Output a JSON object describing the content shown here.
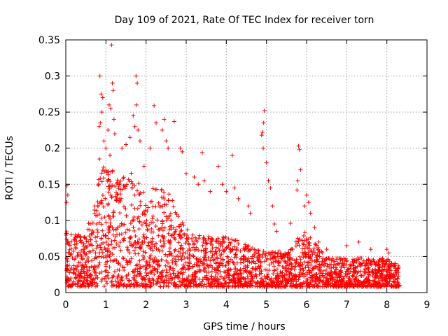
{
  "chart_data": {
    "type": "scatter",
    "title": "Day 109 of 2021, Rate Of TEC Index for receiver torn",
    "xlabel": "GPS time / hours",
    "ylabel": "ROTI / TECUs",
    "xlim": [
      0,
      9
    ],
    "ylim": [
      0,
      0.35
    ],
    "x_ticks": [
      0,
      1,
      2,
      3,
      4,
      5,
      6,
      7,
      8,
      9
    ],
    "y_ticks": [
      0,
      0.05,
      0.1,
      0.15,
      0.2,
      0.25,
      0.3,
      0.35
    ],
    "x_tick_labels": [
      "0",
      "1",
      "2",
      "3",
      "4",
      "5",
      "6",
      "7",
      "8",
      "9"
    ],
    "y_tick_labels": [
      "0",
      "0.05",
      "0.1",
      "0.15",
      "0.2",
      "0.25",
      "0.3",
      "0.35"
    ],
    "grid": true,
    "marker": "+",
    "color": "#ff0000",
    "series": [
      {
        "name": "ROTI",
        "envelope_x": [
          0,
          0.5,
          0.8,
          1.0,
          1.3,
          1.7,
          2.0,
          2.5,
          3.0,
          3.5,
          4.0,
          4.5,
          5.0,
          5.5,
          5.8,
          6.0,
          6.5,
          7.0,
          7.5,
          8.0,
          8.3
        ],
        "envelope_y": [
          0.08,
          0.07,
          0.15,
          0.18,
          0.15,
          0.16,
          0.14,
          0.14,
          0.08,
          0.07,
          0.07,
          0.06,
          0.05,
          0.05,
          0.07,
          0.08,
          0.04,
          0.04,
          0.04,
          0.04,
          0.03
        ],
        "points": [
          {
            "x": 0.03,
            "y": 0.148
          },
          {
            "x": 0.05,
            "y": 0.135
          },
          {
            "x": 0.02,
            "y": 0.125
          },
          {
            "x": 0.85,
            "y": 0.3
          },
          {
            "x": 0.88,
            "y": 0.275
          },
          {
            "x": 0.92,
            "y": 0.27
          },
          {
            "x": 0.9,
            "y": 0.25
          },
          {
            "x": 0.86,
            "y": 0.235
          },
          {
            "x": 0.83,
            "y": 0.23
          },
          {
            "x": 0.84,
            "y": 0.185
          },
          {
            "x": 0.95,
            "y": 0.21
          },
          {
            "x": 1.0,
            "y": 0.2
          },
          {
            "x": 1.05,
            "y": 0.225
          },
          {
            "x": 1.08,
            "y": 0.26
          },
          {
            "x": 1.12,
            "y": 0.255
          },
          {
            "x": 1.14,
            "y": 0.343
          },
          {
            "x": 1.16,
            "y": 0.29
          },
          {
            "x": 1.18,
            "y": 0.28
          },
          {
            "x": 1.2,
            "y": 0.24
          },
          {
            "x": 1.22,
            "y": 0.22
          },
          {
            "x": 1.1,
            "y": 0.19
          },
          {
            "x": 1.4,
            "y": 0.2
          },
          {
            "x": 1.5,
            "y": 0.205
          },
          {
            "x": 1.6,
            "y": 0.215
          },
          {
            "x": 1.68,
            "y": 0.245
          },
          {
            "x": 1.72,
            "y": 0.23
          },
          {
            "x": 1.75,
            "y": 0.3
          },
          {
            "x": 1.78,
            "y": 0.29
          },
          {
            "x": 1.76,
            "y": 0.26
          },
          {
            "x": 1.8,
            "y": 0.225
          },
          {
            "x": 1.85,
            "y": 0.21
          },
          {
            "x": 1.95,
            "y": 0.175
          },
          {
            "x": 2.1,
            "y": 0.2
          },
          {
            "x": 2.2,
            "y": 0.259
          },
          {
            "x": 2.25,
            "y": 0.235
          },
          {
            "x": 2.4,
            "y": 0.225
          },
          {
            "x": 2.45,
            "y": 0.24
          },
          {
            "x": 2.5,
            "y": 0.21
          },
          {
            "x": 2.55,
            "y": 0.2
          },
          {
            "x": 2.7,
            "y": 0.237
          },
          {
            "x": 2.85,
            "y": 0.2
          },
          {
            "x": 2.9,
            "y": 0.195
          },
          {
            "x": 3.0,
            "y": 0.165
          },
          {
            "x": 3.2,
            "y": 0.16
          },
          {
            "x": 3.3,
            "y": 0.15
          },
          {
            "x": 3.4,
            "y": 0.194
          },
          {
            "x": 3.45,
            "y": 0.155
          },
          {
            "x": 3.6,
            "y": 0.14
          },
          {
            "x": 3.8,
            "y": 0.175
          },
          {
            "x": 3.9,
            "y": 0.15
          },
          {
            "x": 4.0,
            "y": 0.14
          },
          {
            "x": 4.15,
            "y": 0.19
          },
          {
            "x": 4.2,
            "y": 0.145
          },
          {
            "x": 4.3,
            "y": 0.13
          },
          {
            "x": 4.55,
            "y": 0.12
          },
          {
            "x": 4.6,
            "y": 0.11
          },
          {
            "x": 4.95,
            "y": 0.252
          },
          {
            "x": 4.93,
            "y": 0.235
          },
          {
            "x": 4.9,
            "y": 0.222
          },
          {
            "x": 4.88,
            "y": 0.218
          },
          {
            "x": 4.92,
            "y": 0.2
          },
          {
            "x": 5.0,
            "y": 0.18
          },
          {
            "x": 5.05,
            "y": 0.155
          },
          {
            "x": 5.1,
            "y": 0.145
          },
          {
            "x": 5.15,
            "y": 0.12
          },
          {
            "x": 5.2,
            "y": 0.095
          },
          {
            "x": 5.25,
            "y": 0.085
          },
          {
            "x": 5.6,
            "y": 0.096
          },
          {
            "x": 5.8,
            "y": 0.203
          },
          {
            "x": 5.82,
            "y": 0.198
          },
          {
            "x": 5.85,
            "y": 0.17
          },
          {
            "x": 5.78,
            "y": 0.155
          },
          {
            "x": 5.76,
            "y": 0.142
          },
          {
            "x": 5.95,
            "y": 0.12
          },
          {
            "x": 6.0,
            "y": 0.135
          },
          {
            "x": 6.05,
            "y": 0.125
          },
          {
            "x": 6.1,
            "y": 0.11
          },
          {
            "x": 6.2,
            "y": 0.09
          },
          {
            "x": 6.3,
            "y": 0.07
          },
          {
            "x": 6.5,
            "y": 0.06
          },
          {
            "x": 7.0,
            "y": 0.065
          },
          {
            "x": 7.3,
            "y": 0.07
          },
          {
            "x": 7.6,
            "y": 0.06
          },
          {
            "x": 8.0,
            "y": 0.06
          },
          {
            "x": 8.05,
            "y": 0.055
          },
          {
            "x": 8.2,
            "y": 0.04
          },
          {
            "x": 8.3,
            "y": 0.035
          },
          {
            "x": 8.32,
            "y": 0.01
          }
        ]
      }
    ]
  }
}
